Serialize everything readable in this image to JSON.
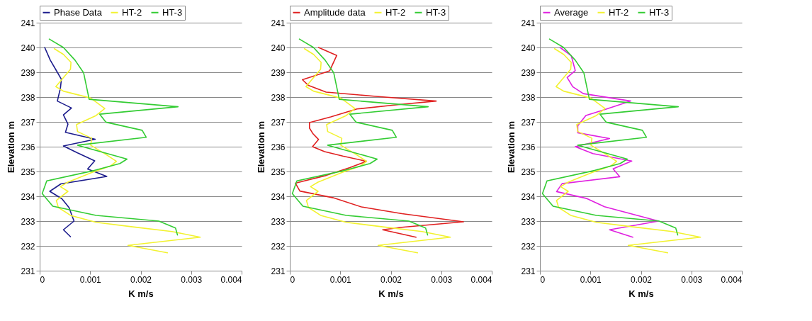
{
  "chart_data": [
    {
      "type": "line",
      "xlabel": "K m/s",
      "ylabel": "Elevation m",
      "xlim": [
        0,
        0.004
      ],
      "xticks": [
        0,
        0.001,
        0.002,
        0.003,
        0.004
      ],
      "ylim": [
        231,
        241
      ],
      "yticks": [
        231,
        232,
        233,
        234,
        235,
        236,
        237,
        238,
        239,
        240,
        241
      ],
      "grid": "y",
      "legend": "top",
      "line_style": "solid",
      "series": [
        {
          "name": "Phase Data",
          "color": "#1c1c8c",
          "x": [
            0.0001,
            0.00021,
            0.00035,
            0.00043,
            0.00041,
            0.00035,
            0.00063,
            0.00047,
            0.00056,
            0.00051,
            0.0011,
            0.00047,
            0.00075,
            0.00109,
            0.00095,
            0.00133,
            0.00042,
            0.0002,
            0.00044,
            0.00058,
            0.00068,
            0.00047,
            0.00061
          ],
          "values": [
            240.0,
            239.49,
            239.0,
            238.72,
            238.35,
            237.84,
            237.56,
            237.28,
            236.91,
            236.58,
            236.3,
            236.03,
            235.75,
            235.43,
            235.1,
            234.8,
            234.5,
            234.2,
            233.9,
            233.55,
            233.0,
            232.65,
            232.37
          ]
        },
        {
          "name": "HT-2",
          "color": "#f2f230",
          "x": [
            0.00029,
            0.00047,
            0.00062,
            0.00061,
            0.00032,
            0.00047,
            0.00101,
            0.00129,
            0.00112,
            0.00073,
            0.00075,
            0.00103,
            0.00101,
            0.00131,
            0.00152,
            0.0014,
            0.00103,
            0.00056,
            0.00041,
            0.00056,
            0.00033,
            0.00037,
            0.00061,
            0.00112,
            0.00187,
            0.00262,
            0.00318,
            0.00175,
            0.00253
          ],
          "values": [
            239.95,
            239.72,
            239.4,
            239.12,
            238.42,
            238.24,
            237.96,
            237.54,
            237.26,
            236.89,
            236.61,
            236.34,
            236.06,
            235.69,
            235.41,
            235.22,
            234.96,
            234.57,
            234.39,
            234.2,
            233.83,
            233.55,
            233.23,
            232.95,
            232.76,
            232.58,
            232.35,
            232.02,
            231.72
          ]
        },
        {
          "name": "HT-3",
          "color": "#33cc33",
          "x": [
            0.00019,
            0.00047,
            0.0007,
            0.00087,
            0.00098,
            0.00274,
            0.00119,
            0.00131,
            0.00203,
            0.00211,
            0.00075,
            0.00173,
            0.00159,
            0.00108,
            0.00014,
            5e-05,
            0.00026,
            0.00112,
            0.00236,
            0.00269,
            0.00273
          ],
          "values": [
            240.34,
            240.0,
            239.49,
            238.98,
            237.91,
            237.61,
            237.31,
            236.99,
            236.66,
            236.38,
            236.06,
            235.5,
            235.32,
            235.04,
            234.62,
            234.11,
            233.6,
            233.23,
            233.0,
            232.72,
            232.44
          ]
        }
      ]
    },
    {
      "type": "line",
      "xlabel": "K m/s",
      "ylabel": "Elevation m",
      "xlim": [
        0,
        0.004
      ],
      "xticks": [
        0,
        0.001,
        0.002,
        0.003,
        0.004
      ],
      "ylim": [
        231,
        241
      ],
      "yticks": [
        231,
        232,
        233,
        234,
        235,
        236,
        237,
        238,
        239,
        240,
        241
      ],
      "grid": "y",
      "legend": "top",
      "line_style": "solid",
      "series": [
        {
          "name": "Amplitude data",
          "color": "#e02020",
          "x": [
            0.00057,
            0.00093,
            0.00079,
            0.00025,
            0.00037,
            0.00072,
            0.00175,
            0.0029,
            0.00217,
            0.00133,
            0.00081,
            0.00039,
            0.00039,
            0.00046,
            0.00057,
            0.00045,
            0.00069,
            0.00105,
            0.00152,
            0.00119,
            0.00072,
            0.00011,
            0.0002,
            0.00086,
            0.00142,
            0.00222,
            0.00344,
            0.00222,
            0.00184,
            0.0025
          ],
          "values": [
            240.0,
            239.68,
            239.06,
            238.7,
            238.47,
            238.2,
            238.02,
            237.84,
            237.7,
            237.52,
            237.2,
            236.97,
            236.75,
            236.52,
            236.29,
            236.0,
            235.8,
            235.62,
            235.41,
            235.16,
            234.84,
            234.53,
            234.21,
            233.94,
            233.57,
            233.3,
            232.97,
            232.75,
            232.65,
            232.35
          ]
        },
        {
          "name": "HT-2",
          "color": "#f2f230",
          "x": [
            0.00029,
            0.00047,
            0.00062,
            0.00061,
            0.00032,
            0.00047,
            0.00101,
            0.00129,
            0.00112,
            0.00073,
            0.00075,
            0.00103,
            0.00101,
            0.00131,
            0.00152,
            0.0014,
            0.00103,
            0.00056,
            0.00041,
            0.00056,
            0.00033,
            0.00037,
            0.00061,
            0.00112,
            0.00187,
            0.00262,
            0.00318,
            0.00175,
            0.00253
          ],
          "values": [
            239.95,
            239.72,
            239.4,
            239.12,
            238.42,
            238.24,
            237.96,
            237.54,
            237.26,
            236.89,
            236.61,
            236.34,
            236.06,
            235.69,
            235.41,
            235.22,
            234.96,
            234.57,
            234.39,
            234.2,
            233.83,
            233.55,
            233.23,
            232.95,
            232.76,
            232.58,
            232.35,
            232.02,
            231.72
          ]
        },
        {
          "name": "HT-3",
          "color": "#33cc33",
          "x": [
            0.00019,
            0.00047,
            0.0007,
            0.00087,
            0.00098,
            0.00274,
            0.00119,
            0.00131,
            0.00203,
            0.00211,
            0.00075,
            0.00173,
            0.00159,
            0.00108,
            0.00014,
            5e-05,
            0.00026,
            0.00112,
            0.00236,
            0.00269,
            0.00273
          ],
          "values": [
            240.34,
            240.0,
            239.49,
            238.98,
            237.91,
            237.61,
            237.31,
            236.99,
            236.66,
            236.38,
            236.06,
            235.5,
            235.32,
            235.04,
            234.62,
            234.11,
            233.6,
            233.23,
            233.0,
            232.72,
            232.44
          ]
        }
      ]
    },
    {
      "type": "line",
      "xlabel": "K m/s",
      "ylabel": "Elevation m",
      "xlim": [
        0,
        0.004
      ],
      "xticks": [
        0,
        0.001,
        0.002,
        0.003,
        0.004
      ],
      "ylim": [
        231,
        241
      ],
      "yticks": [
        231,
        232,
        233,
        234,
        235,
        236,
        237,
        238,
        239,
        240,
        241
      ],
      "grid": "y",
      "legend": "top",
      "line_style": "solid",
      "series": [
        {
          "name": "Average",
          "color": "#e020e0",
          "x": [
            0.0004,
            0.00062,
            0.0007,
            0.00054,
            0.00065,
            0.00086,
            0.0018,
            0.00128,
            0.00091,
            0.00075,
            0.00075,
            0.00138,
            0.0007,
            0.00105,
            0.00182,
            0.00145,
            0.00158,
            0.00044,
            0.00033,
            0.00093,
            0.00128,
            0.00235,
            0.00138,
            0.00184
          ],
          "values": [
            240.0,
            239.67,
            239.07,
            238.79,
            238.42,
            238.14,
            237.84,
            237.49,
            237.26,
            236.84,
            236.56,
            236.33,
            236.0,
            235.72,
            235.42,
            235.11,
            234.79,
            234.51,
            234.19,
            233.91,
            233.58,
            233.0,
            232.65,
            232.35
          ]
        },
        {
          "name": "HT-2",
          "color": "#f2f230",
          "x": [
            0.00029,
            0.00047,
            0.00062,
            0.00061,
            0.00032,
            0.00047,
            0.00101,
            0.00129,
            0.00112,
            0.00073,
            0.00075,
            0.00103,
            0.00101,
            0.00131,
            0.00152,
            0.0014,
            0.00103,
            0.00056,
            0.00041,
            0.00056,
            0.00033,
            0.00037,
            0.00061,
            0.00112,
            0.00187,
            0.00262,
            0.00318,
            0.00175,
            0.00253
          ],
          "values": [
            239.95,
            239.72,
            239.4,
            239.12,
            238.42,
            238.24,
            237.96,
            237.54,
            237.26,
            236.89,
            236.61,
            236.34,
            236.06,
            235.69,
            235.41,
            235.22,
            234.96,
            234.57,
            234.39,
            234.2,
            233.83,
            233.55,
            233.23,
            232.95,
            232.76,
            232.58,
            232.35,
            232.02,
            231.72
          ]
        },
        {
          "name": "HT-3",
          "color": "#33cc33",
          "x": [
            0.00019,
            0.00047,
            0.0007,
            0.00087,
            0.00098,
            0.00274,
            0.00119,
            0.00131,
            0.00203,
            0.00211,
            0.00075,
            0.00173,
            0.00159,
            0.00108,
            0.00014,
            5e-05,
            0.00026,
            0.00112,
            0.00236,
            0.00269,
            0.00273
          ],
          "values": [
            240.34,
            240.0,
            239.49,
            238.98,
            237.91,
            237.61,
            237.31,
            236.99,
            236.66,
            236.38,
            236.06,
            235.5,
            235.32,
            235.04,
            234.62,
            234.11,
            233.6,
            233.23,
            233.0,
            232.72,
            232.44
          ]
        }
      ]
    }
  ]
}
